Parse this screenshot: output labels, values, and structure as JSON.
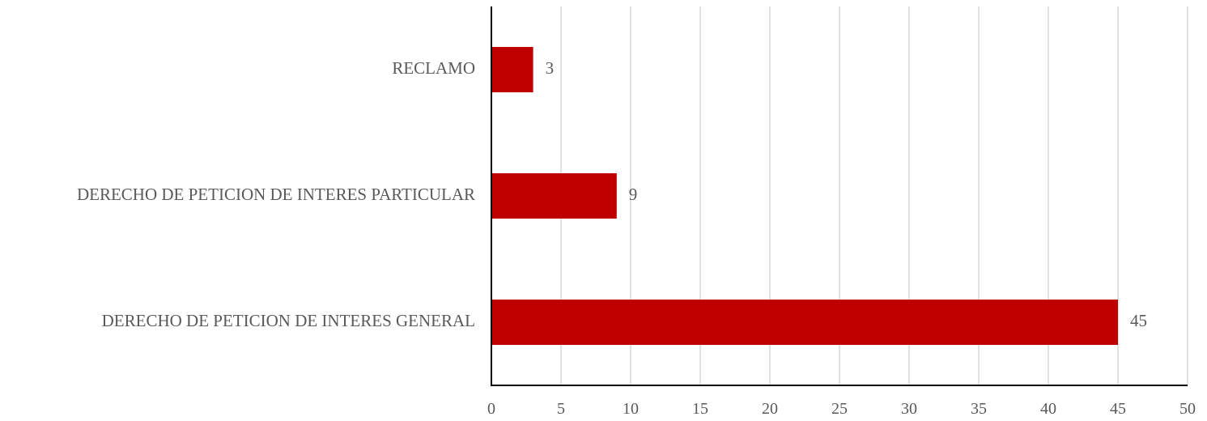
{
  "chart_data": {
    "type": "bar",
    "orientation": "horizontal",
    "categories": [
      "RECLAMO",
      "DERECHO DE PETICION DE INTERES PARTICULAR",
      "DERECHO DE PETICION DE INTERES GENERAL"
    ],
    "values": [
      3,
      9,
      45
    ],
    "data_labels": [
      "3",
      "9",
      "45"
    ],
    "title": "",
    "xlabel": "",
    "ylabel": "",
    "xlim": [
      0,
      50
    ],
    "x_ticks": [
      0,
      5,
      10,
      15,
      20,
      25,
      30,
      35,
      40,
      45,
      50
    ],
    "x_tick_labels": [
      "0",
      "5",
      "10",
      "15",
      "20",
      "25",
      "30",
      "35",
      "40",
      "45",
      "50"
    ],
    "grid": "vertical",
    "legend": "none",
    "colors": {
      "bar": "#c00000",
      "text": "#595959",
      "grid": "#d9d9d9",
      "axis": "#000000"
    }
  }
}
